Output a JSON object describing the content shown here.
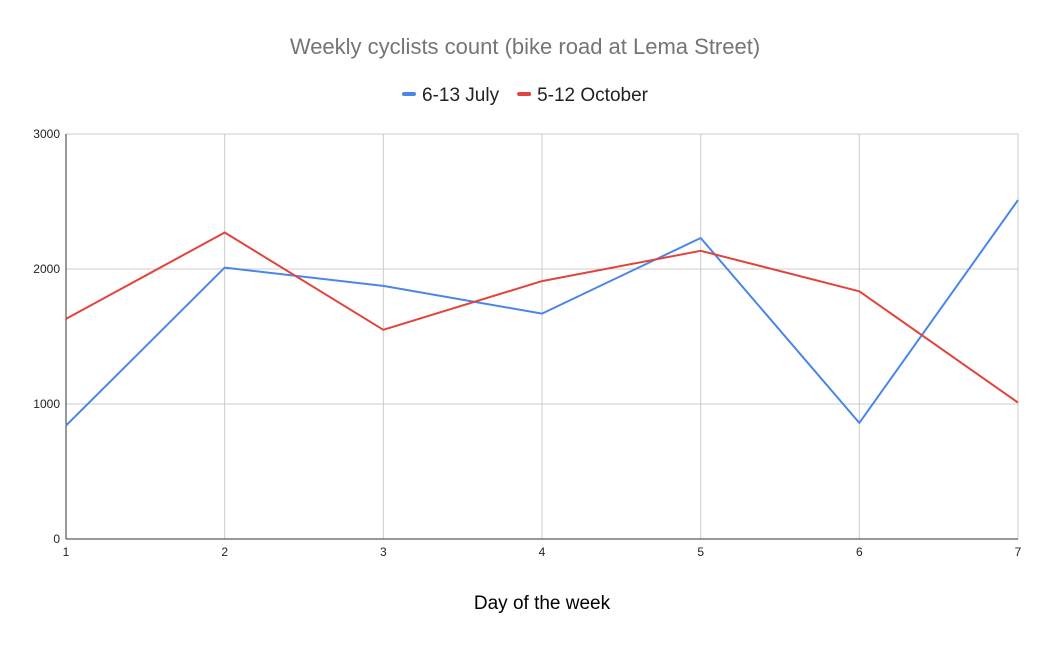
{
  "chart_data": {
    "type": "line",
    "title": "Weekly cyclists count (bike road at Lema Street)",
    "xlabel": "Day of the week",
    "ylabel": "",
    "x": [
      1,
      2,
      3,
      4,
      5,
      6,
      7
    ],
    "x_ticks": [
      "1",
      "2",
      "3",
      "4",
      "5",
      "6",
      "7"
    ],
    "xlim": [
      1,
      7
    ],
    "ylim": [
      0,
      3000
    ],
    "y_ticks": [
      "0",
      "1000",
      "2000",
      "3000"
    ],
    "y_tick_values": [
      0,
      1000,
      2000,
      3000
    ],
    "grid": true,
    "legend_position": "top-center",
    "series": [
      {
        "name": "6-13 July",
        "color": "#4a86e8",
        "values": [
          840,
          2010,
          1875,
          1670,
          2230,
          860,
          2510
        ]
      },
      {
        "name": "5-12 October",
        "color": "#e0443c",
        "values": [
          1630,
          2270,
          1550,
          1910,
          2135,
          1835,
          1010
        ]
      }
    ]
  }
}
